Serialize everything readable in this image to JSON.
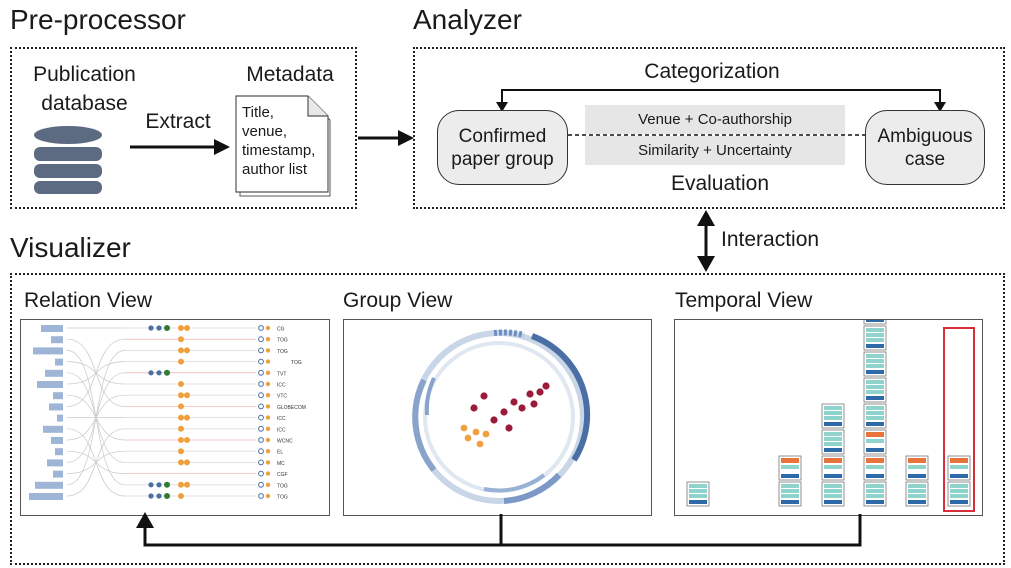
{
  "preprocessor": {
    "title": "Pre-processor",
    "database_label_line1": "Publication",
    "database_label_line2": "database",
    "extract_label": "Extract",
    "metadata_label": "Metadata",
    "metadata_lines": [
      "Title,",
      "venue,",
      "timestamp,",
      "author list"
    ]
  },
  "analyzer": {
    "title": "Analyzer",
    "categorization_label": "Categorization",
    "confirmed_line1": "Confirmed",
    "confirmed_line2": "paper group",
    "ambiguous_line1": "Ambiguous",
    "ambiguous_line2": "case",
    "band_top": "Venue + Co-authorship",
    "band_bottom": "Similarity + Uncertainty",
    "evaluation_label": "Evaluation"
  },
  "interaction_label": "Interaction",
  "visualizer": {
    "title": "Visualizer",
    "relation_view_title": "Relation View",
    "group_view_title": "Group View",
    "temporal_view_title": "Temporal View",
    "venue_labels": [
      "CG",
      "TOG",
      "TOG",
      "TOG",
      "TVT",
      "ICC",
      "VTC",
      "GLOBECOM",
      "ICC",
      "ICC",
      "WCNC",
      "EL",
      "MC",
      "CGF",
      "TOG",
      "TOG"
    ]
  },
  "colors": {
    "database_icon": "#5d6b82",
    "orange_dot": "#f0a040",
    "green_dot": "#2e7d32",
    "blue_dot": "#4a6fa5",
    "crimson_dot": "#9b1b3a",
    "teal_doc": "#8fd4cc",
    "doc_blue": "#2f6aa8",
    "doc_orange": "#e8743b",
    "highlight_red": "#d62f3a"
  },
  "icons": [
    "database-icon",
    "document-icon",
    "arrow-right-icon",
    "double-arrow-vertical-icon"
  ]
}
